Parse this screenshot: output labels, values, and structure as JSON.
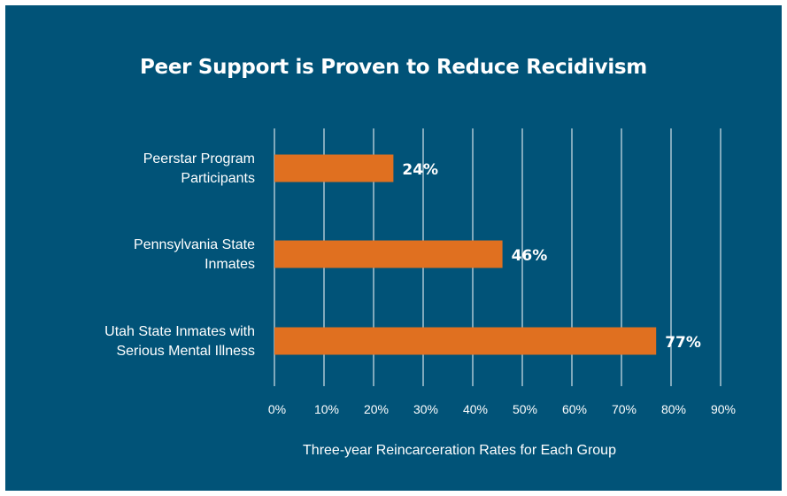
{
  "chart_data": {
    "type": "bar",
    "orientation": "horizontal",
    "title": "Peer Support is Proven to Reduce Recidivism",
    "xlabel": "Three-year Reincarceration Rates for Each Group",
    "ylabel": "",
    "xlim": [
      0,
      90
    ],
    "x_ticks": [
      "0%",
      "10%",
      "20%",
      "30%",
      "40%",
      "50%",
      "60%",
      "70%",
      "80%",
      "90%"
    ],
    "grid": true,
    "legend": "none",
    "categories": [
      [
        "Peerstar Program",
        "Participants"
      ],
      [
        "Pennsylvania State",
        "Inmates"
      ],
      [
        "Utah State Inmates with",
        "Serious Mental Illness"
      ]
    ],
    "values": [
      24,
      46,
      77
    ],
    "data_labels": [
      "24%",
      "46%",
      "77%"
    ],
    "colors": {
      "background": "#015378",
      "bar": "#e07020",
      "gridline": "#ffffff",
      "text": "#ffffff"
    }
  }
}
